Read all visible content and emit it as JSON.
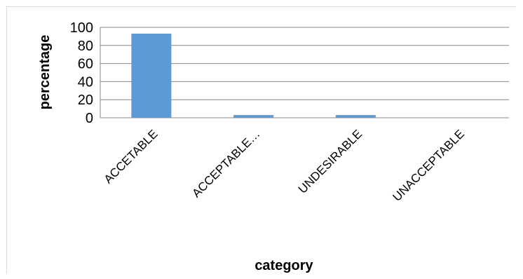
{
  "chart_data": {
    "type": "bar",
    "categories": [
      "ACCETABLE",
      "ACCEPTABLE…",
      "UNDESIRABLE",
      "UNACCEPTABLE"
    ],
    "values": [
      93,
      3,
      3,
      0
    ],
    "xlabel": "category",
    "ylabel": "percentage",
    "ylim": [
      0,
      100
    ],
    "yticks": [
      "0",
      "20",
      "40",
      "60",
      "80",
      "100"
    ],
    "grid": true,
    "legend": "none",
    "bar_color": "#5b9bd5",
    "grid_color": "#878787"
  }
}
